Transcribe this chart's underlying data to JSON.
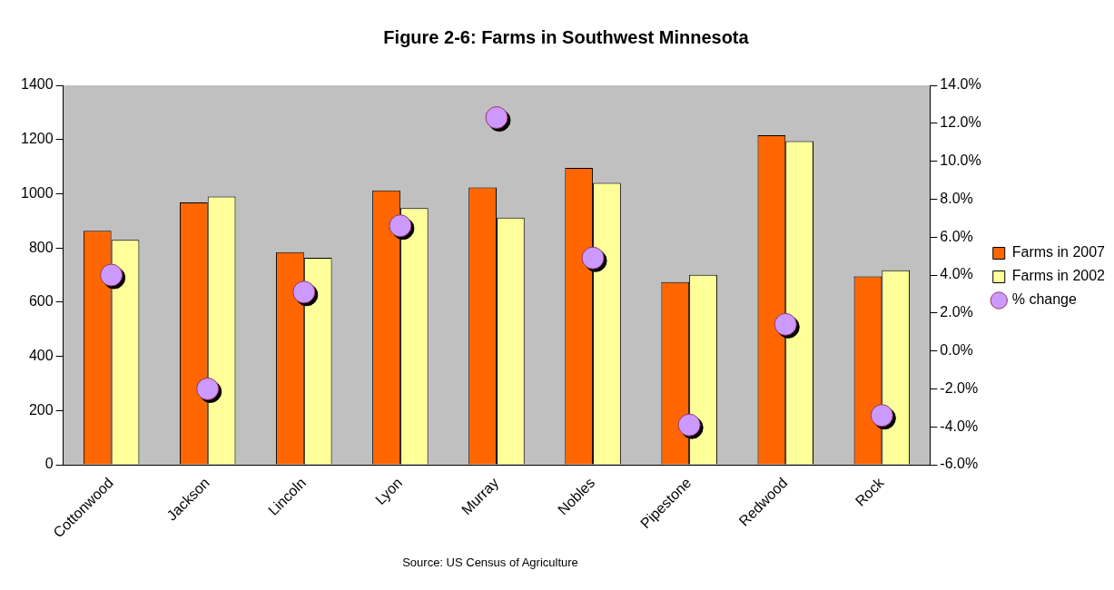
{
  "chart_data": {
    "type": "bar",
    "title": "Figure 2-6: Farms in Southwest Minnesota",
    "categories": [
      "Cottonwood",
      "Jackson",
      "Lincoln",
      "Lyon",
      "Murray",
      "Nobles",
      "Pipestone",
      "Redwood",
      "Rock"
    ],
    "series": [
      {
        "name": "Farms in 2007",
        "color": "#ff6600",
        "values": [
          863,
          968,
          785,
          1012,
          1023,
          1095,
          674,
          1216,
          695
        ]
      },
      {
        "name": "Farms in 2002",
        "color": "#ffff99",
        "values": [
          830,
          990,
          764,
          947,
          912,
          1040,
          701,
          1194,
          718
        ]
      },
      {
        "name": "% change",
        "type": "scatter",
        "axis": "y2",
        "color": "#cc99ff",
        "marker": "circle",
        "x": [
          "Cottonwood",
          "Jackson",
          "Lincoln",
          "Lyon",
          "Murray",
          "Nobles",
          "Pipestone",
          "Redwood",
          "Rock"
        ],
        "values": [
          4.0,
          -2.0,
          3.1,
          6.6,
          12.3,
          4.9,
          -3.9,
          1.4,
          -3.4
        ]
      }
    ],
    "ylim": [
      0,
      1400
    ],
    "yticks": [
      0,
      200,
      400,
      600,
      800,
      1000,
      1200,
      1400
    ],
    "y2lim": [
      -6,
      14
    ],
    "y2ticks": [
      {
        "value": -6,
        "label": "-6.0%"
      },
      {
        "value": -4,
        "label": "-4.0%"
      },
      {
        "value": -2,
        "label": "-2.0%"
      },
      {
        "value": 0,
        "label": "0.0%"
      },
      {
        "value": 2,
        "label": "2.0%"
      },
      {
        "value": 4,
        "label": "4.0%"
      },
      {
        "value": 6,
        "label": "6.0%"
      },
      {
        "value": 8,
        "label": "8.0%"
      },
      {
        "value": 10,
        "label": "10.0%"
      },
      {
        "value": 12,
        "label": "12.0%"
      },
      {
        "value": 14,
        "label": "14.0%"
      }
    ],
    "grid": false,
    "legend": "right",
    "annotations": [
      "Source: US Census of Agriculture"
    ]
  }
}
